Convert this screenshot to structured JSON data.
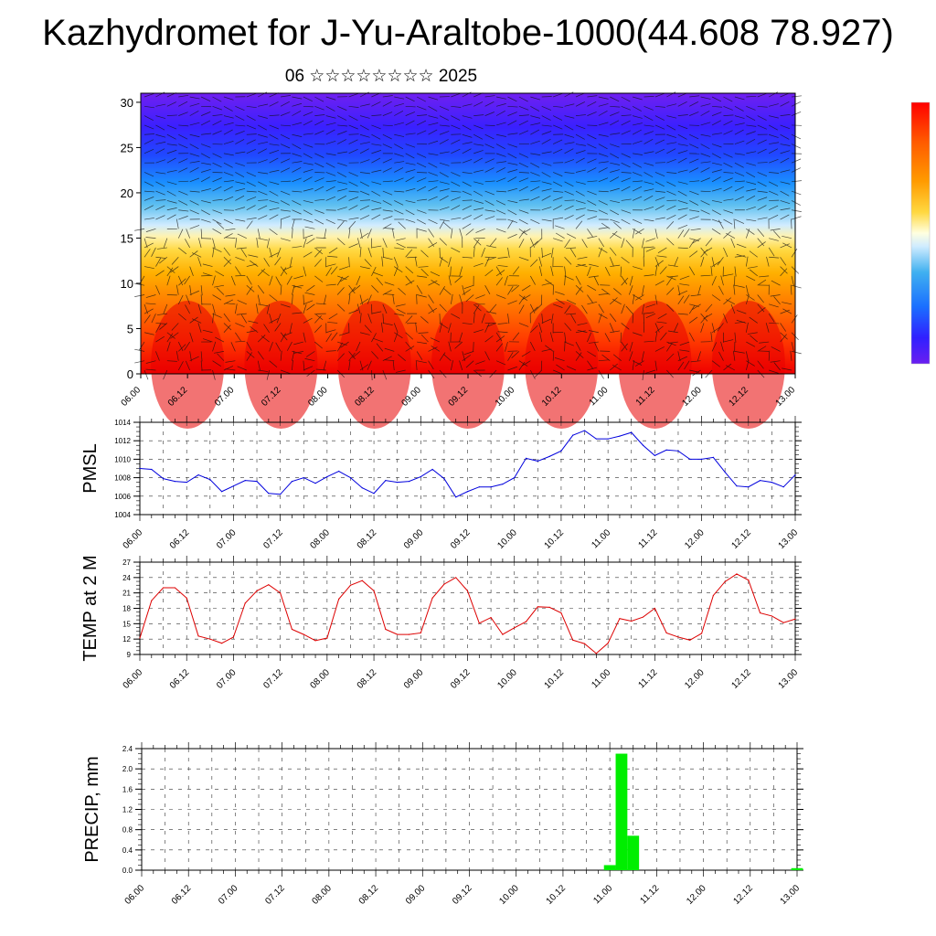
{
  "header": {
    "title": "Kazhydromet for J-Yu-Araltobe-1000(44.608 78.927)",
    "subtitle": "06 ☆☆☆☆☆☆☆☆ 2025"
  },
  "colors": {
    "pmsl_line": "#0000dd",
    "temp_line": "#dd0000",
    "precip_bar": "#00ee00",
    "colorbar": [
      "#ff0000",
      "#ff4000",
      "#ff8000",
      "#ffb000",
      "#ffd840",
      "#fff0a0",
      "#c8e8ff",
      "#40b0f0",
      "#1080ff",
      "#2040ff",
      "#4020ff",
      "#6a1ef0"
    ]
  },
  "x_ticks": [
    "06.00",
    "06.12",
    "07.00",
    "07.12",
    "08.00",
    "08.12",
    "09.00",
    "09.12",
    "10.00",
    "10.12",
    "11.00",
    "11.12",
    "12.00",
    "12.12",
    "13.00"
  ],
  "chart_data": [
    {
      "type": "heatmap",
      "title": "",
      "xlabel": "",
      "ylabel": "",
      "y_ticks": [
        "0",
        "5",
        "10",
        "15",
        "20",
        "25",
        "30"
      ],
      "ylim": [
        0,
        31
      ],
      "note": "height-time cross-section with wind barbs"
    },
    {
      "type": "line",
      "ylabel": "PMSL",
      "ylim": [
        1004,
        1014
      ],
      "y_ticks": [
        "1004",
        "1006",
        "1008",
        "1010",
        "1012",
        "1014"
      ],
      "series": [
        {
          "name": "",
          "x": [
            0,
            3,
            6,
            9,
            12,
            15,
            18,
            21,
            24,
            27,
            30,
            33,
            36,
            39,
            42,
            45,
            48,
            51,
            54,
            57,
            60,
            63,
            66,
            69,
            72,
            75,
            78,
            81,
            84,
            87,
            90,
            93,
            96,
            99,
            102,
            105,
            108,
            111,
            114,
            117,
            120,
            123,
            126,
            129,
            132,
            135,
            138,
            141,
            144,
            147,
            150,
            153,
            156,
            159,
            162,
            165,
            168
          ],
          "values": [
            1009.0,
            1008.9,
            1007.9,
            1007.6,
            1007.5,
            1008.3,
            1007.8,
            1006.5,
            1007.1,
            1007.7,
            1007.6,
            1006.3,
            1006.2,
            1007.6,
            1008.0,
            1007.4,
            1008.1,
            1008.7,
            1008.0,
            1006.9,
            1006.3,
            1007.7,
            1007.5,
            1007.6,
            1008.1,
            1008.9,
            1007.9,
            1005.9,
            1006.5,
            1007.0,
            1007.0,
            1007.3,
            1008.0,
            1010.1,
            1009.8,
            1010.3,
            1010.9,
            1012.6,
            1013.1,
            1012.2,
            1012.2,
            1012.5,
            1012.9,
            1011.5,
            1010.4,
            1011.0,
            1010.9,
            1010.0,
            1010.0,
            1010.2,
            1008.6,
            1007.1,
            1007.0,
            1007.7,
            1007.5,
            1007.0,
            1008.3
          ]
        }
      ]
    },
    {
      "type": "line",
      "ylabel": "TEMP at 2 M",
      "ylim": [
        9,
        27
      ],
      "y_ticks": [
        "9",
        "12",
        "15",
        "18",
        "21",
        "24",
        "27"
      ],
      "series": [
        {
          "name": "",
          "x": [
            0,
            3,
            6,
            9,
            12,
            15,
            18,
            21,
            24,
            27,
            30,
            33,
            36,
            39,
            42,
            45,
            48,
            51,
            54,
            57,
            60,
            63,
            66,
            69,
            72,
            75,
            78,
            81,
            84,
            87,
            90,
            93,
            96,
            99,
            102,
            105,
            108,
            111,
            114,
            117,
            120,
            123,
            126,
            129,
            132,
            135,
            138,
            141,
            144,
            147,
            150,
            153,
            156,
            159,
            162,
            165,
            168
          ],
          "values": [
            12.2,
            19.5,
            22.0,
            22.0,
            20.0,
            12.6,
            12.0,
            11.2,
            12.4,
            19.0,
            21.4,
            22.6,
            21.0,
            13.9,
            12.9,
            11.7,
            12.2,
            19.8,
            22.5,
            23.4,
            21.4,
            13.9,
            12.9,
            12.9,
            13.2,
            20.0,
            22.7,
            24.0,
            21.4,
            15.1,
            16.2,
            12.9,
            14.2,
            15.4,
            18.3,
            18.2,
            17.1,
            11.8,
            11.1,
            9.2,
            11.2,
            16.0,
            15.5,
            16.3,
            18.0,
            13.2,
            12.4,
            11.8,
            13.1,
            20.5,
            23.2,
            24.7,
            23.5,
            17.1,
            16.5,
            15.2,
            15.9
          ]
        }
      ]
    },
    {
      "type": "bar",
      "ylabel": "PRECIP, mm",
      "ylim": [
        0,
        2.4
      ],
      "y_ticks": [
        "0.0",
        "0.4",
        "0.8",
        "1.2",
        "1.6",
        "2.0",
        "2.4"
      ],
      "series": [
        {
          "name": "",
          "x": [
            120,
            123,
            126,
            168
          ],
          "values": [
            0.1,
            2.3,
            0.68,
            0.04
          ]
        }
      ]
    }
  ]
}
